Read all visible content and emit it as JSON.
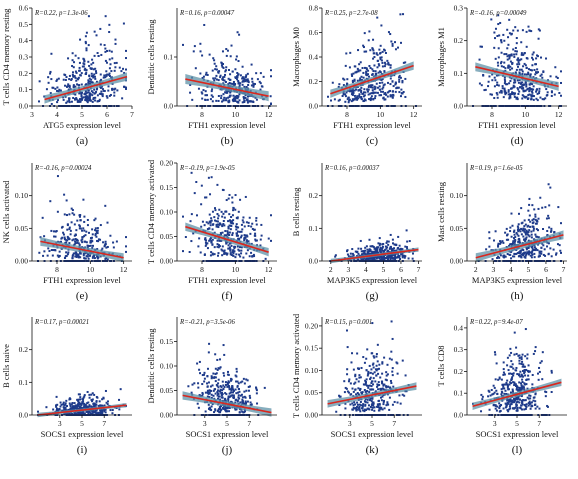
{
  "colors": {
    "point": "#1d3a8a",
    "line": "#d9271e",
    "band": "#5f93a8",
    "axis": "#111111"
  },
  "chart_data": [
    {
      "type": "scatter",
      "panel": "(a)",
      "stat": "R=0.22, p=1.3e-06",
      "xlabel": "ATG5 expression level",
      "ylabel": "T cells CD4 memory resting",
      "xlim": [
        3,
        7
      ],
      "ylim": [
        0,
        0.6
      ],
      "xticks": [
        3,
        4,
        5,
        6,
        7
      ],
      "yticks": [
        0.0,
        0.1,
        0.2,
        0.3,
        0.4,
        0.5,
        0.6
      ],
      "ytick_labels": [
        "0.0",
        "0.1",
        "0.2",
        "0.3",
        "0.4",
        "0.5",
        "0.6"
      ],
      "x_center": 5.2,
      "x_sd": 0.7,
      "y_max": 0.55,
      "n": 420,
      "fit": [
        [
          3.5,
          0.04
        ],
        [
          6.8,
          0.18
        ]
      ],
      "band": 0.015,
      "ci": 0.5
    },
    {
      "type": "scatter",
      "panel": "(b)",
      "stat": "R=0.16, p=0.00047",
      "xlabel": "FTH1 expression level",
      "ylabel": "Dendritic cells resting",
      "xlim": [
        6.5,
        12.5
      ],
      "ylim": [
        0,
        0.2
      ],
      "xticks": [
        8,
        10,
        12
      ],
      "yticks": [
        0.0,
        0.1
      ],
      "ytick_labels": [
        "0.0",
        "0.1"
      ],
      "x_center": 9.8,
      "x_sd": 1.0,
      "y_max": 0.2,
      "n": 380,
      "fit": [
        [
          7,
          0.055
        ],
        [
          12,
          0.02
        ]
      ],
      "band": 0.006,
      "ci": 0.4
    },
    {
      "type": "scatter",
      "panel": "(c)",
      "stat": "R=0.25, p=2.7e-08",
      "xlabel": "FTH1 expression level",
      "ylabel": "Macrophages M0",
      "xlim": [
        6.5,
        12.5
      ],
      "ylim": [
        0,
        0.8
      ],
      "xticks": [
        8,
        10,
        12
      ],
      "yticks": [
        0.0,
        0.2,
        0.4,
        0.6,
        0.8
      ],
      "ytick_labels": [
        "0.0",
        "0.2",
        "0.4",
        "0.6",
        "0.8"
      ],
      "x_center": 9.5,
      "x_sd": 1.0,
      "y_max": 0.75,
      "n": 420,
      "fit": [
        [
          7,
          0.1
        ],
        [
          12,
          0.33
        ]
      ],
      "band": 0.02,
      "ci": 0.4
    },
    {
      "type": "scatter",
      "panel": "(d)",
      "stat": "R=-0.16, p=0.00049",
      "xlabel": "FTH1 expression level",
      "ylabel": "Macrophages M1",
      "xlim": [
        6.5,
        12.5
      ],
      "ylim": [
        0,
        0.3
      ],
      "xticks": [
        8,
        10,
        12
      ],
      "yticks": [
        0.0,
        0.1,
        0.2,
        0.3
      ],
      "ytick_labels": [
        "0.0",
        "0.1",
        "0.2",
        "0.3"
      ],
      "x_center": 9.6,
      "x_sd": 1.0,
      "y_max": 0.3,
      "n": 420,
      "fit": [
        [
          7,
          0.12
        ],
        [
          12,
          0.06
        ]
      ],
      "band": 0.008,
      "ci": 0.45
    },
    {
      "type": "scatter",
      "panel": "(e)",
      "stat": "R=-0.16, p=0.00024",
      "xlabel": "FTH1 expression level",
      "ylabel": "NK cells activated",
      "xlim": [
        6.5,
        12.5
      ],
      "ylim": [
        0,
        0.15
      ],
      "xticks": [
        8,
        10,
        12
      ],
      "yticks": [
        0.0,
        0.05,
        0.1
      ],
      "ytick_labels": [
        "0.00",
        "0.05",
        "0.10"
      ],
      "x_center": 9.5,
      "x_sd": 1.0,
      "y_max": 0.13,
      "n": 340,
      "fit": [
        [
          7,
          0.03
        ],
        [
          12,
          0.005
        ]
      ],
      "band": 0.004,
      "ci": 0.5
    },
    {
      "type": "scatter",
      "panel": "(f)",
      "stat": "R=-0.19, p=1.9e-05",
      "xlabel": "FTH1 expression level",
      "ylabel": "T cells CD4 memory activated",
      "xlim": [
        6.5,
        12.5
      ],
      "ylim": [
        0,
        0.2
      ],
      "xticks": [
        8,
        10,
        12
      ],
      "yticks": [
        0.0,
        0.05,
        0.1,
        0.15,
        0.2
      ],
      "ytick_labels": [
        "0.00",
        "0.05",
        "0.10",
        "0.15",
        "0.20"
      ],
      "x_center": 9.6,
      "x_sd": 1.0,
      "y_max": 0.19,
      "n": 380,
      "fit": [
        [
          7,
          0.07
        ],
        [
          12,
          0.018
        ]
      ],
      "band": 0.005,
      "ci": 0.45
    },
    {
      "type": "scatter",
      "panel": "(g)",
      "stat": "R=0.16, p=0.00037",
      "xlabel": "MAP3K5 expression level",
      "ylabel": "B cells resting",
      "xlim": [
        1.5,
        7.2
      ],
      "ylim": [
        0,
        0.3
      ],
      "xticks": [
        2,
        3,
        4,
        5,
        6,
        7
      ],
      "yticks": [
        0.0,
        0.1,
        0.2
      ],
      "ytick_labels": [
        "0.0",
        "0.1",
        "0.2"
      ],
      "x_center": 4.7,
      "x_sd": 0.9,
      "y_max": 0.25,
      "n": 420,
      "fit": [
        [
          2,
          0.0
        ],
        [
          7,
          0.035
        ]
      ],
      "band": 0.004,
      "ci": 0.25
    },
    {
      "type": "scatter",
      "panel": "(h)",
      "stat": "R=0.19, p=1.6e-05",
      "xlabel": "MAP3K5 expression level",
      "ylabel": "Mast cells resting",
      "xlim": [
        1.5,
        7.2
      ],
      "ylim": [
        0,
        0.15
      ],
      "xticks": [
        2,
        3,
        4,
        5,
        6,
        7
      ],
      "yticks": [
        0.0,
        0.05,
        0.1
      ],
      "ytick_labels": [
        "0.00",
        "0.05",
        "0.10"
      ],
      "x_center": 4.8,
      "x_sd": 0.9,
      "y_max": 0.14,
      "n": 400,
      "fit": [
        [
          2,
          0.005
        ],
        [
          7,
          0.04
        ]
      ],
      "band": 0.004,
      "ci": 0.45
    },
    {
      "type": "scatter",
      "panel": "(i)",
      "stat": "R=0.17, p=0.00021",
      "xlabel": "SOCS1 expression level",
      "ylabel": "B cells naive",
      "xlim": [
        0.5,
        9.5
      ],
      "ylim": [
        0,
        0.3
      ],
      "xticks": [
        3,
        5,
        7
      ],
      "yticks": [
        0.0,
        0.1,
        0.2
      ],
      "ytick_labels": [
        "0.0",
        "0.1",
        "0.2"
      ],
      "x_center": 5.0,
      "x_sd": 1.3,
      "y_max": 0.28,
      "n": 380,
      "fit": [
        [
          1,
          0.0
        ],
        [
          9,
          0.03
        ]
      ],
      "band": 0.004,
      "ci": 0.25
    },
    {
      "type": "scatter",
      "panel": "(j)",
      "stat": "R=-0.21, p=3.5e-06",
      "xlabel": "SOCS1 expression level",
      "ylabel": "Dendritic cells resting",
      "xlim": [
        0.5,
        9.5
      ],
      "ylim": [
        0,
        0.2
      ],
      "xticks": [
        3,
        5,
        7
      ],
      "yticks": [
        0.0,
        0.05,
        0.1,
        0.15
      ],
      "ytick_labels": [
        "0.00",
        "0.05",
        "0.10",
        "0.15"
      ],
      "x_center": 5.0,
      "x_sd": 1.3,
      "y_max": 0.19,
      "n": 420,
      "fit": [
        [
          1,
          0.04
        ],
        [
          9,
          0.005
        ]
      ],
      "band": 0.005,
      "ci": 0.5
    },
    {
      "type": "scatter",
      "panel": "(k)",
      "stat": "R=0.15, p=0.001",
      "xlabel": "SOCS1 expression level",
      "ylabel": "T cells CD4 memory activated",
      "xlim": [
        0.5,
        9.5
      ],
      "ylim": [
        0,
        0.22
      ],
      "xticks": [
        3,
        5,
        7
      ],
      "yticks": [
        0.0,
        0.05,
        0.1,
        0.15,
        0.2
      ],
      "ytick_labels": [
        "0.00",
        "0.05",
        "0.10",
        "0.15",
        "0.20"
      ],
      "x_center": 5.0,
      "x_sd": 1.3,
      "y_max": 0.21,
      "n": 400,
      "fit": [
        [
          1,
          0.025
        ],
        [
          9,
          0.065
        ]
      ],
      "band": 0.005,
      "ci": 0.5
    },
    {
      "type": "scatter",
      "panel": "(l)",
      "stat": "R=0.22, p=9.4e-07",
      "xlabel": "SOCS1 expression level",
      "ylabel": "T cells CD8",
      "xlim": [
        0.5,
        9.5
      ],
      "ylim": [
        0,
        0.45
      ],
      "xticks": [
        3,
        5,
        7
      ],
      "yticks": [
        0.0,
        0.1,
        0.2,
        0.3,
        0.4
      ],
      "ytick_labels": [
        "0.0",
        "0.1",
        "0.2",
        "0.3",
        "0.4"
      ],
      "x_center": 5.0,
      "x_sd": 1.3,
      "y_max": 0.43,
      "n": 420,
      "fit": [
        [
          1,
          0.04
        ],
        [
          9,
          0.15
        ]
      ],
      "band": 0.01,
      "ci": 0.45
    }
  ]
}
